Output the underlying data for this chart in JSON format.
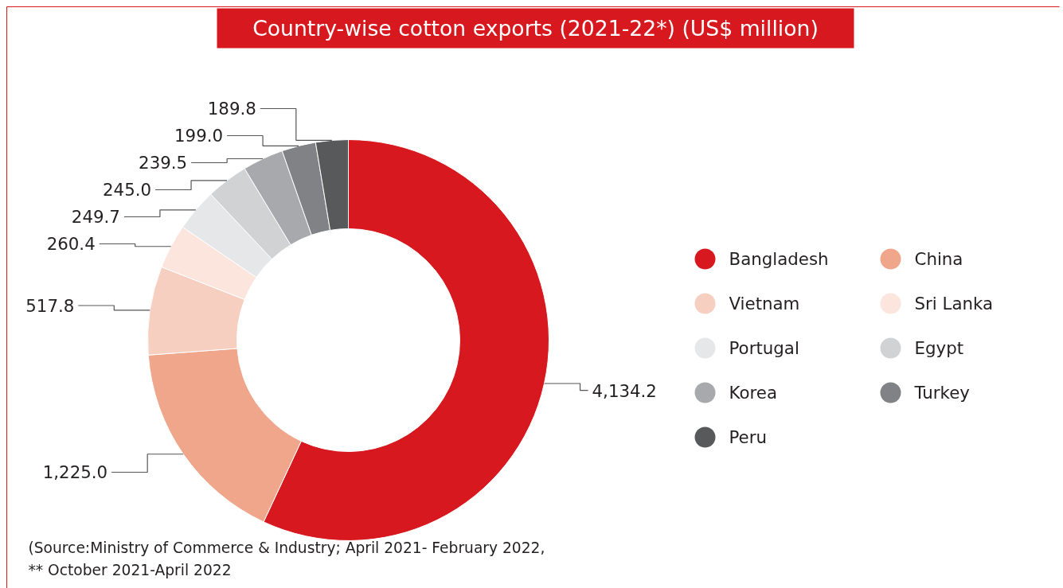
{
  "chart_data": {
    "type": "donut",
    "title": "Country-wise cotton exports (2021-22*) (US$ million)",
    "categories": [
      "Bangladesh",
      "China",
      "Vietnam",
      "Sri Lanka",
      "Portugal",
      "Egypt",
      "Korea",
      "Turkey",
      "Peru"
    ],
    "values": [
      4134.2,
      1225.0,
      517.8,
      260.4,
      249.7,
      245.0,
      239.5,
      199.0,
      189.8
    ],
    "colors": [
      "#d7191f",
      "#f0a68a",
      "#f7cfc0",
      "#fbe5dc",
      "#e6e7e8",
      "#d1d2d4",
      "#a7a9ac",
      "#808285",
      "#58595b"
    ],
    "value_labels": [
      "4,134.2",
      "1,225.0",
      "517.8",
      "260.4",
      "249.7",
      "245.0",
      "239.5",
      "199.0",
      "189.8"
    ],
    "legend": "right",
    "annotations": [
      "(Source:Ministry of Commerce & Industry; April 2021- February 2022,",
      "** October 2021-April 2022"
    ]
  }
}
